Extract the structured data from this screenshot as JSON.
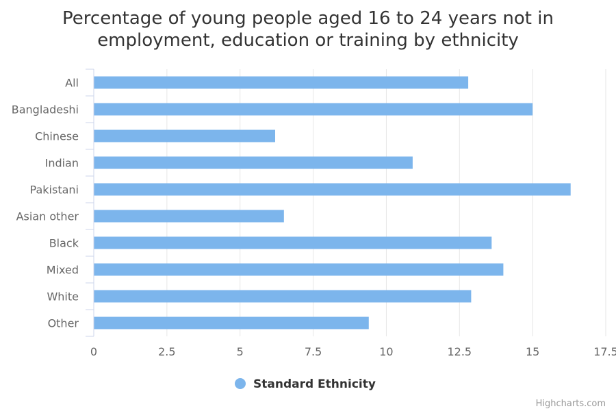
{
  "chart_data": {
    "type": "bar",
    "orientation": "horizontal",
    "title": "Percentage of young people aged 16 to 24 years not in employment, education or training by ethnicity",
    "title_lines": [
      "Percentage of young people aged 16 to 24 years not in",
      "employment, education or training by ethnicity"
    ],
    "categories": [
      "All",
      "Bangladeshi",
      "Chinese",
      "Indian",
      "Pakistani",
      "Asian other",
      "Black",
      "Mixed",
      "White",
      "Other"
    ],
    "series": [
      {
        "name": "Standard Ethnicity",
        "color": "#7cb5ec",
        "values": [
          12.8,
          15.0,
          6.2,
          10.9,
          16.3,
          6.5,
          13.6,
          14.0,
          12.9,
          9.4
        ]
      }
    ],
    "xlim": [
      0,
      17.5
    ],
    "ticks": [
      "0",
      "2.5",
      "5",
      "7.5",
      "10",
      "12.5",
      "15",
      "17.5"
    ],
    "grid": true,
    "legend_position": "bottom-center"
  },
  "credits": "Highcharts.com",
  "colors": {
    "bar": "#7cb5ec",
    "grid": "#e6e6e6",
    "axis": "#ccd6eb",
    "title": "#333333",
    "label": "#666666",
    "credits": "#999999"
  }
}
